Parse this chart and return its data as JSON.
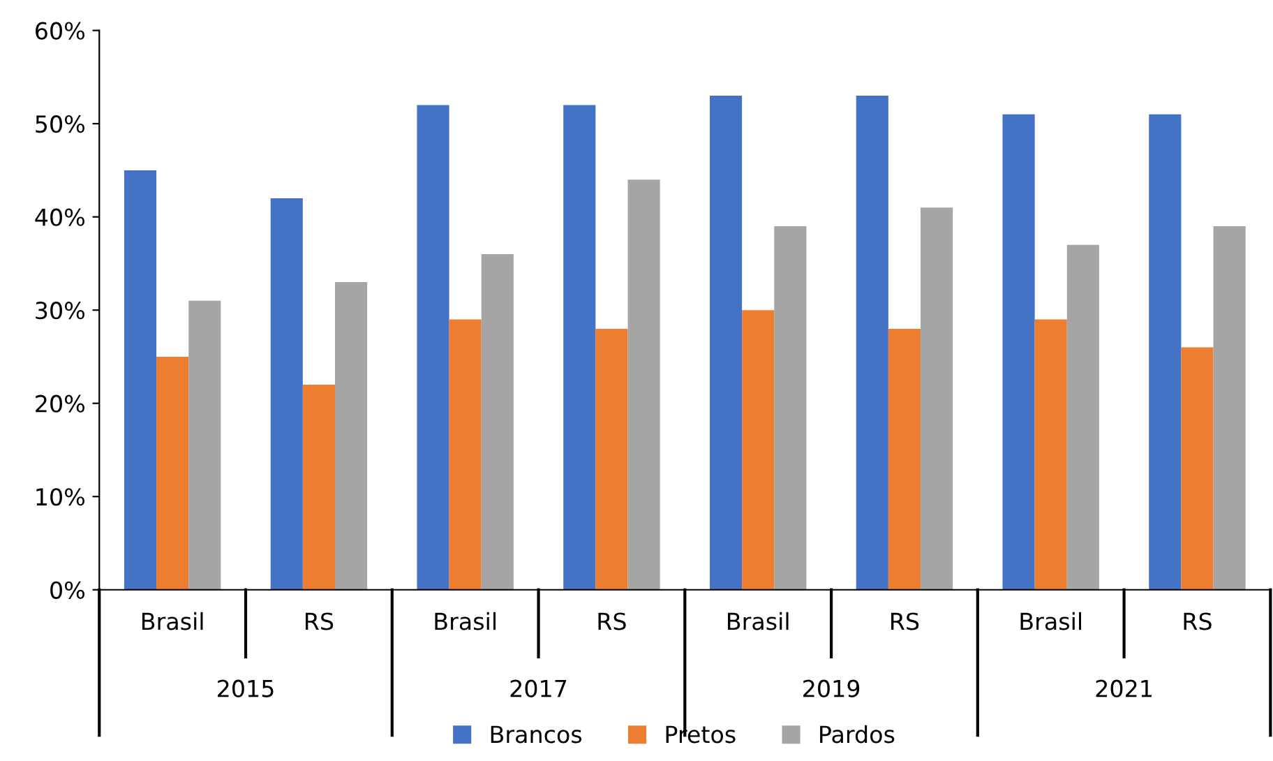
{
  "chart_data": {
    "type": "bar",
    "categories": [
      "Brasil",
      "RS",
      "Brasil",
      "RS",
      "Brasil",
      "RS",
      "Brasil",
      "RS"
    ],
    "annotations": [
      "2015",
      "2017",
      "2019",
      "2021"
    ],
    "series": [
      {
        "name": "Brancos",
        "color": "#4472c4",
        "values": [
          45,
          42,
          52,
          52,
          53,
          53,
          51,
          51
        ]
      },
      {
        "name": "Pretos",
        "color": "#ed7d31",
        "values": [
          25,
          22,
          29,
          28,
          30,
          28,
          29,
          26
        ]
      },
      {
        "name": "Pardos",
        "color": "#a5a5a5",
        "values": [
          31,
          33,
          36,
          44,
          39,
          41,
          37,
          39
        ]
      }
    ],
    "ylim": [
      0,
      60
    ],
    "yticks": [
      {
        "value": 0,
        "label": "0%"
      },
      {
        "value": 10,
        "label": "10%"
      },
      {
        "value": 20,
        "label": "20%"
      },
      {
        "value": 30,
        "label": "30%"
      },
      {
        "value": 40,
        "label": "40%"
      },
      {
        "value": 50,
        "label": "50%"
      },
      {
        "value": 60,
        "label": "60%"
      }
    ],
    "grid": false,
    "legend": "bottom"
  }
}
